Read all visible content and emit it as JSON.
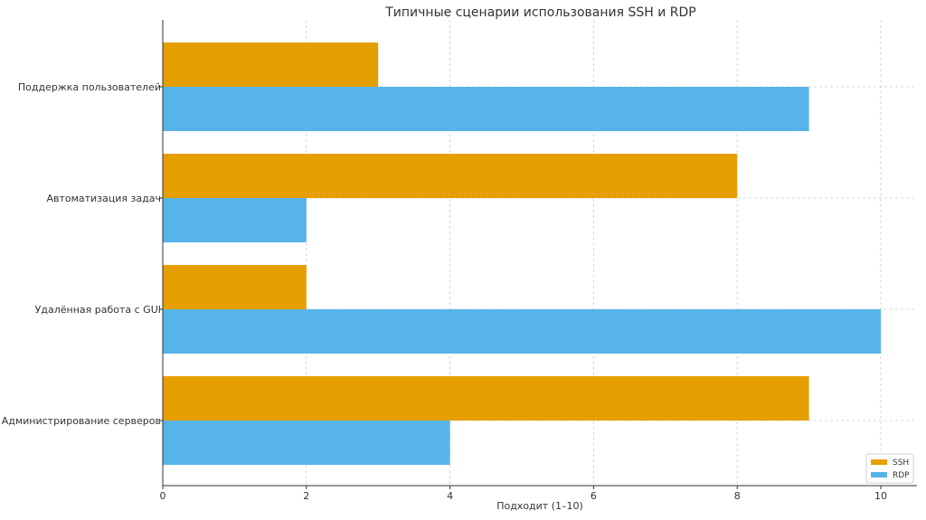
{
  "chart_data": {
    "type": "bar",
    "orientation": "horizontal",
    "title": "Типичные сценарии использования SSH и RDP",
    "xlabel": "Подходит (1–10)",
    "ylabel": "",
    "categories": [
      "Администрирование серверов",
      "Удалённая работа с GUI",
      "Автоматизация задач",
      "Поддержка пользователей"
    ],
    "series": [
      {
        "name": "SSH",
        "values": [
          9,
          2,
          8,
          3
        ],
        "color": "#E69F00"
      },
      {
        "name": "RDP",
        "values": [
          4,
          10,
          2,
          9
        ],
        "color": "#56B4E9"
      }
    ],
    "xlim": [
      0,
      10.5
    ],
    "xticks": [
      0,
      2,
      4,
      6,
      8,
      10
    ],
    "grid": true,
    "legend_position": "bottom-right"
  }
}
